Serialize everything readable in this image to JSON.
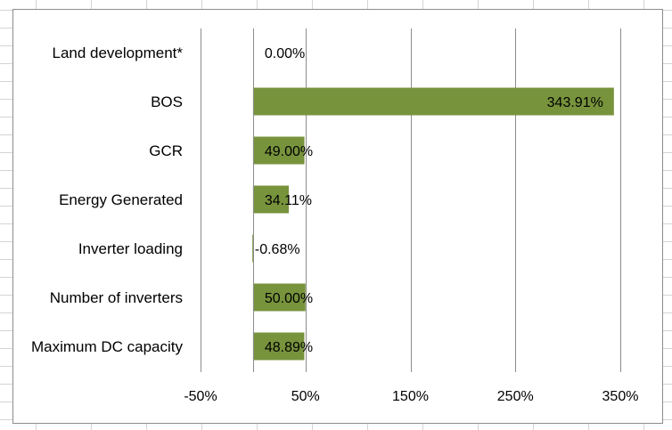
{
  "chart_data": {
    "type": "bar",
    "orientation": "horizontal",
    "categories": [
      "Land development*",
      "BOS",
      "GCR",
      "Energy Generated",
      "Inverter loading",
      "Number of inverters",
      "Maximum DC capacity"
    ],
    "values": [
      0.0,
      343.91,
      49.0,
      34.11,
      -0.68,
      50.0,
      48.89
    ],
    "data_labels": [
      "0.00%",
      "343.91%",
      "49.00%",
      "34.11%",
      "-0.68%",
      "50.00%",
      "48.89%"
    ],
    "x_ticks": [
      -50,
      50,
      150,
      250,
      350
    ],
    "x_tick_labels": [
      "-50%",
      "50%",
      "150%",
      "250%",
      "350%"
    ],
    "xlim": [
      -50,
      350
    ],
    "grid": "vertical",
    "bar_color": "#77933c",
    "title": "",
    "xlabel": "",
    "ylabel": ""
  }
}
